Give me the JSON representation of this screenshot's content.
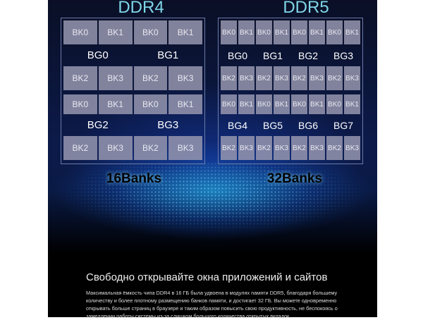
{
  "ddr4": {
    "title": "DDR4",
    "total": "16Banks",
    "rows": [
      {
        "type": "banks",
        "labels": [
          "BK0",
          "BK1",
          "BK0",
          "BK1"
        ]
      },
      {
        "type": "groups",
        "labels": [
          "BG0",
          "BG1"
        ]
      },
      {
        "type": "banks",
        "labels": [
          "BK2",
          "BK3",
          "BK2",
          "BK3"
        ]
      },
      {
        "type": "banks",
        "labels": [
          "BK0",
          "BK1",
          "BK0",
          "BK1"
        ]
      },
      {
        "type": "groups",
        "labels": [
          "BG2",
          "BG3"
        ]
      },
      {
        "type": "banks",
        "labels": [
          "BK2",
          "BK3",
          "BK2",
          "BK3"
        ]
      }
    ]
  },
  "ddr5": {
    "title": "DDR5",
    "total": "32Banks",
    "rows": [
      {
        "type": "banks",
        "labels": [
          "BK0",
          "BK1",
          "BK0",
          "BK1",
          "BK0",
          "BK1",
          "BK0",
          "BK1"
        ]
      },
      {
        "type": "groups",
        "labels": [
          "BG0",
          "BG1",
          "BG2",
          "BG3"
        ]
      },
      {
        "type": "banks",
        "labels": [
          "BK2",
          "BK3",
          "BK2",
          "BK3",
          "BK2",
          "BK3",
          "BK2",
          "BK3"
        ]
      },
      {
        "type": "banks",
        "labels": [
          "BK0",
          "BK1",
          "BK0",
          "BK1",
          "BK0",
          "BK1",
          "BK0",
          "BK1"
        ]
      },
      {
        "type": "groups",
        "labels": [
          "BG4",
          "BG5",
          "BG6",
          "BG7"
        ]
      },
      {
        "type": "banks",
        "labels": [
          "BK2",
          "BK3",
          "BK2",
          "BK3",
          "BK2",
          "BK3",
          "BK2",
          "BK3"
        ]
      }
    ]
  },
  "text": {
    "heading": "Свободно открывайте окна приложений и сайтов",
    "paragraph": "Максимальная ёмкость чипа DDR4 в 16 ГБ была удвоена в модулях памяти DDR5, благодаря большему количеству и более плотному размещению банков памяти, и достигает 32 ГБ. Вы можете одновременно открывать больше страниц в браузере и таким образом повысить свою продуктивность, не беспокоясь о замедлении работы системы из-за слишком большого количества открытых вкладок."
  }
}
